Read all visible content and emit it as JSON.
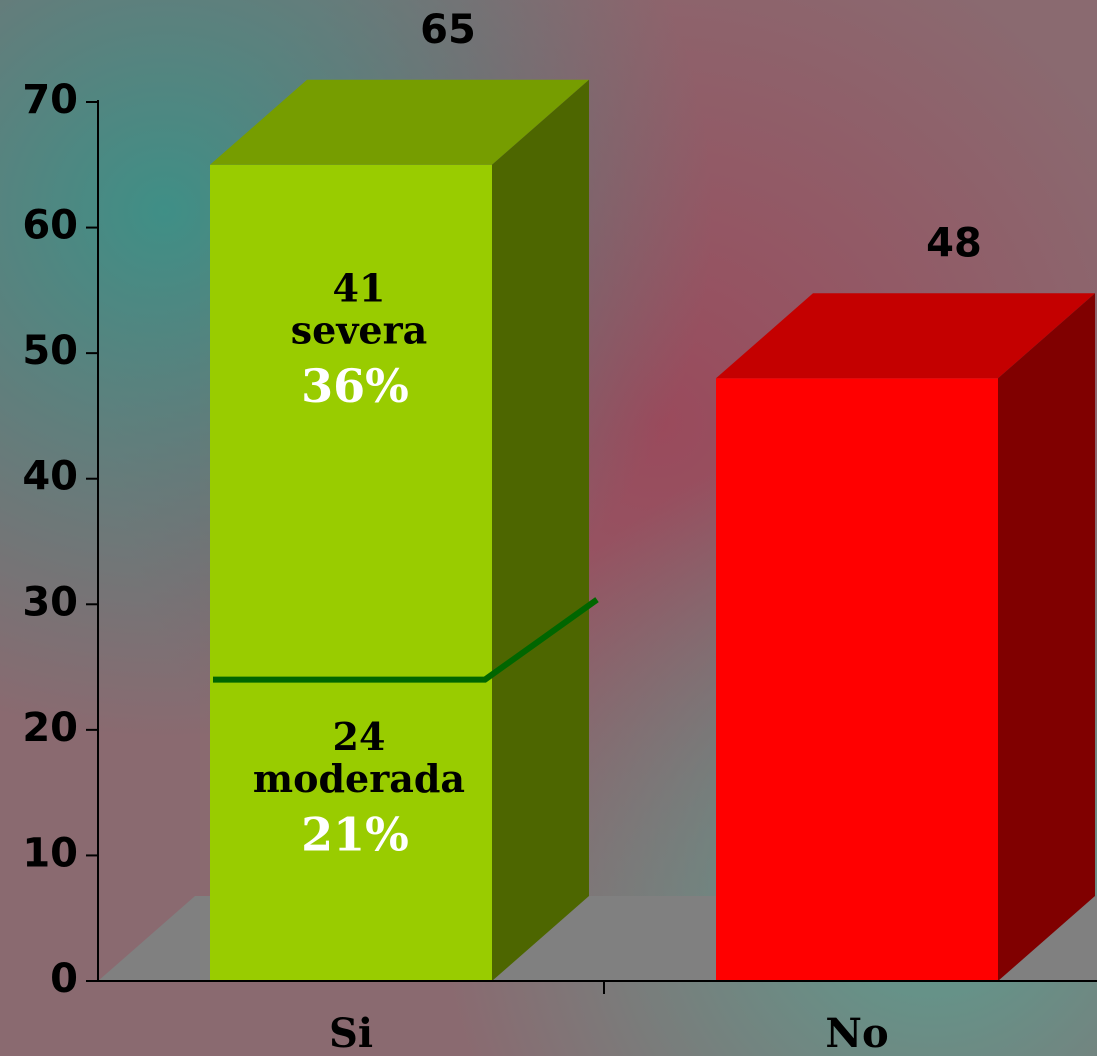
{
  "chart_data": {
    "type": "bar3d",
    "categories": [
      "Si",
      "No"
    ],
    "values": [
      65,
      48
    ],
    "colors": [
      "#99cc00",
      "#ff0000"
    ],
    "segments": [
      {
        "value": 24,
        "name": "moderada",
        "share": 21,
        "share_label": "21%"
      },
      {
        "value": 41,
        "name": "severa",
        "share": 36,
        "share_label": "36%"
      }
    ],
    "ylim": [
      0,
      70
    ],
    "yticks": [
      0,
      10,
      20,
      30,
      40,
      50,
      60,
      70
    ]
  }
}
